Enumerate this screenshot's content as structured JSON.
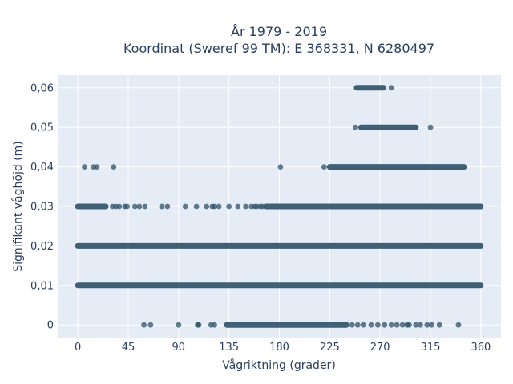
{
  "chart_data": {
    "type": "scatter",
    "title_line1": "År 1979 - 2019",
    "title_line2": "Koordinat (Sweref 99 TM): E 368331, N 6280497",
    "xlabel": "Vågriktning (grader)",
    "ylabel": "Signifikant våghöjd (m)",
    "xlim": [
      -18,
      378
    ],
    "ylim": [
      -0.0032,
      0.0632
    ],
    "x_ticks": [
      0,
      45,
      90,
      135,
      180,
      225,
      270,
      315,
      360
    ],
    "x_tick_labels": [
      "0",
      "45",
      "90",
      "135",
      "180",
      "225",
      "270",
      "315",
      "360"
    ],
    "y_ticks": [
      0,
      0.01,
      0.02,
      0.03,
      0.04,
      0.05,
      0.06
    ],
    "y_tick_labels": [
      "0",
      "0,01",
      "0,02",
      "0,03",
      "0,04",
      "0,05",
      "0,06"
    ],
    "grid": true,
    "marker_color": "#2e5068",
    "plot_bg_color": "#e5ecf6",
    "bands": [
      {
        "y": 0.0,
        "ranges": [
          [
            133,
            240
          ]
        ]
      },
      {
        "y": 0.01,
        "ranges": [
          [
            0,
            360
          ]
        ]
      },
      {
        "y": 0.02,
        "ranges": [
          [
            0,
            360
          ]
        ]
      },
      {
        "y": 0.03,
        "ranges": [
          [
            0,
            25
          ],
          [
            168,
            360
          ]
        ]
      },
      {
        "y": 0.04,
        "ranges": [
          [
            225,
            345
          ]
        ]
      },
      {
        "y": 0.05,
        "ranges": [
          [
            253,
            302
          ]
        ]
      },
      {
        "y": 0.06,
        "ranges": [
          [
            249,
            273
          ]
        ]
      }
    ],
    "points": [
      {
        "x": 59,
        "y": 0.0
      },
      {
        "x": 65,
        "y": 0.0
      },
      {
        "x": 90,
        "y": 0.0
      },
      {
        "x": 107,
        "y": 0.0
      },
      {
        "x": 108,
        "y": 0.0
      },
      {
        "x": 119,
        "y": 0.0
      },
      {
        "x": 122,
        "y": 0.0
      },
      {
        "x": 245,
        "y": 0.0
      },
      {
        "x": 250,
        "y": 0.0
      },
      {
        "x": 255,
        "y": 0.0
      },
      {
        "x": 262,
        "y": 0.0
      },
      {
        "x": 268,
        "y": 0.0
      },
      {
        "x": 274,
        "y": 0.0
      },
      {
        "x": 280,
        "y": 0.0
      },
      {
        "x": 285,
        "y": 0.0
      },
      {
        "x": 290,
        "y": 0.0
      },
      {
        "x": 294,
        "y": 0.0
      },
      {
        "x": 296,
        "y": 0.0
      },
      {
        "x": 302,
        "y": 0.0
      },
      {
        "x": 306,
        "y": 0.0
      },
      {
        "x": 312,
        "y": 0.0
      },
      {
        "x": 316,
        "y": 0.0
      },
      {
        "x": 323,
        "y": 0.0
      },
      {
        "x": 340,
        "y": 0.0
      },
      {
        "x": 31,
        "y": 0.03
      },
      {
        "x": 34,
        "y": 0.03
      },
      {
        "x": 37,
        "y": 0.03
      },
      {
        "x": 42,
        "y": 0.03
      },
      {
        "x": 44,
        "y": 0.03
      },
      {
        "x": 51,
        "y": 0.03
      },
      {
        "x": 55,
        "y": 0.03
      },
      {
        "x": 60,
        "y": 0.03
      },
      {
        "x": 75,
        "y": 0.03
      },
      {
        "x": 80,
        "y": 0.03
      },
      {
        "x": 96,
        "y": 0.03
      },
      {
        "x": 106,
        "y": 0.03
      },
      {
        "x": 115,
        "y": 0.03
      },
      {
        "x": 120,
        "y": 0.03
      },
      {
        "x": 122,
        "y": 0.03
      },
      {
        "x": 126,
        "y": 0.03
      },
      {
        "x": 135,
        "y": 0.03
      },
      {
        "x": 143,
        "y": 0.03
      },
      {
        "x": 150,
        "y": 0.03
      },
      {
        "x": 155,
        "y": 0.03
      },
      {
        "x": 158,
        "y": 0.03
      },
      {
        "x": 160,
        "y": 0.03
      },
      {
        "x": 163,
        "y": 0.03
      },
      {
        "x": 165,
        "y": 0.03
      },
      {
        "x": 6,
        "y": 0.04
      },
      {
        "x": 14,
        "y": 0.04
      },
      {
        "x": 17,
        "y": 0.04
      },
      {
        "x": 32,
        "y": 0.04
      },
      {
        "x": 181,
        "y": 0.04
      },
      {
        "x": 220,
        "y": 0.04
      },
      {
        "x": 248,
        "y": 0.05
      },
      {
        "x": 315,
        "y": 0.05
      },
      {
        "x": 280,
        "y": 0.06
      }
    ]
  }
}
